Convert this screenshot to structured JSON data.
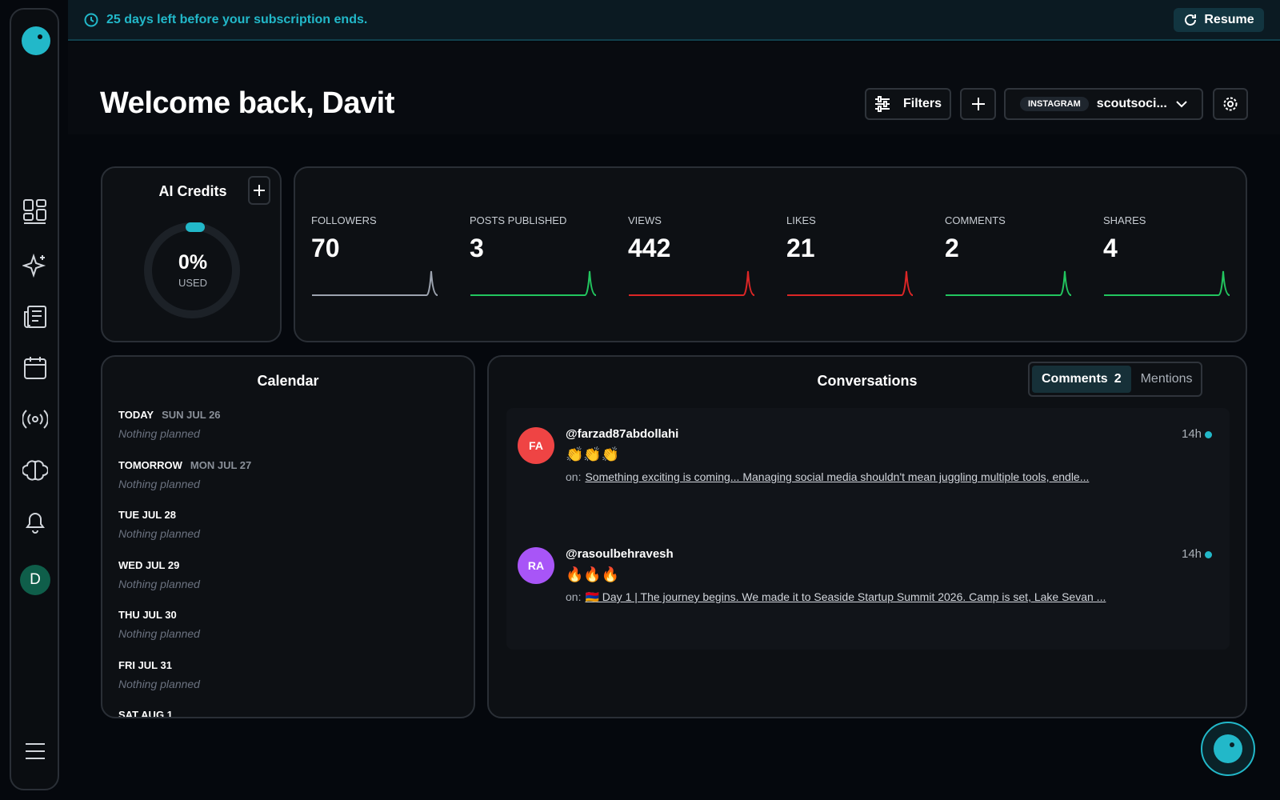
{
  "banner": {
    "text": "25 days left before your subscription ends.",
    "button": "Resume"
  },
  "header": {
    "title": "Welcome back, Davit",
    "filters": "Filters",
    "platform": "INSTAGRAM",
    "account": "scoutsoci..."
  },
  "sidebar": {
    "avatar": "D"
  },
  "credits": {
    "title": "AI Credits",
    "percent": "0%",
    "caption": "USED"
  },
  "stats": [
    {
      "label": "FOLLOWERS",
      "value": 70,
      "color": "#9ca3af"
    },
    {
      "label": "POSTS PUBLISHED",
      "value": 3,
      "color": "#22c55e"
    },
    {
      "label": "VIEWS",
      "value": 442,
      "color": "#dc2626"
    },
    {
      "label": "LIKES",
      "value": 21,
      "color": "#dc2626"
    },
    {
      "label": "COMMENTS",
      "value": 2,
      "color": "#22c55e"
    },
    {
      "label": "SHARES",
      "value": 4,
      "color": "#22c55e"
    }
  ],
  "calendar": {
    "title": "Calendar",
    "days": [
      {
        "day": "TODAY",
        "date": "SUN JUL 26",
        "note": "Nothing planned"
      },
      {
        "day": "TOMORROW",
        "date": "MON JUL 27",
        "note": "Nothing planned"
      },
      {
        "day": "TUE JUL 28",
        "note": "Nothing planned"
      },
      {
        "day": "WED JUL 29",
        "note": "Nothing planned"
      },
      {
        "day": "THU JUL 30",
        "note": "Nothing planned"
      },
      {
        "day": "FRI JUL 31",
        "note": "Nothing planned"
      },
      {
        "day": "SAT AUG 1"
      }
    ]
  },
  "conversations": {
    "title": "Conversations",
    "tabs": [
      {
        "label": "Comments",
        "count": 2
      },
      {
        "label": "Mentions"
      }
    ],
    "items": [
      {
        "initials": "FA",
        "color": "#ef4444",
        "user": "@farzad87abdollahi",
        "time": "14h",
        "text": "👏👏👏",
        "prefix": "on:",
        "post": "Something exciting is coming... Managing social media shouldn't mean juggling multiple tools, endle..."
      },
      {
        "initials": "RA",
        "color": "#a855f7",
        "user": "@rasoulbehravesh",
        "time": "14h",
        "text": "🔥🔥🔥",
        "prefix": "on:",
        "post": "🇦🇲 Day 1 | The journey begins. We made it to Seaside Startup Summit 2026. Camp is set, Lake Sevan ..."
      }
    ]
  }
}
